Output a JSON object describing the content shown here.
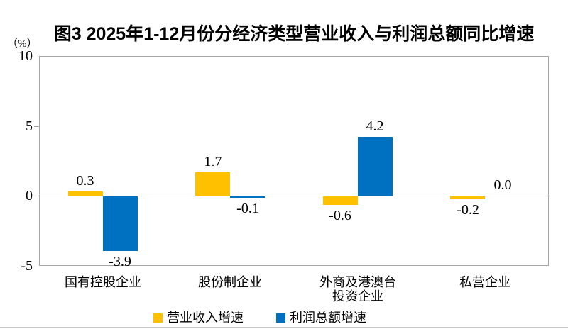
{
  "figure": {
    "bottom_rule": true
  },
  "chart_data": {
    "type": "bar",
    "title": "图3 2025年1-12月份分经济类型营业收入与利润总额同比增速",
    "ylabel": "（%）",
    "xlabel": "",
    "categories": [
      "国有控股企业",
      "股份制企业",
      "外商及港澳台\n投资企业",
      "私营企业"
    ],
    "series": [
      {
        "name": "营业收入增速",
        "color": "#FFC000",
        "values": [
          0.3,
          1.7,
          -0.6,
          -0.2
        ]
      },
      {
        "name": "利润总额增速",
        "color": "#0070C0",
        "values": [
          -3.9,
          -0.1,
          4.2,
          0.0
        ]
      }
    ],
    "data_labels": {
      "营业收入增速": [
        "0.3",
        "1.7",
        "-0.6",
        "-0.2"
      ],
      "利润总额增速": [
        "-3.9",
        "-0.1",
        "4.2",
        "0.0"
      ]
    },
    "ylim": [
      -5,
      10
    ],
    "y_ticks": [
      10,
      5,
      0,
      -5
    ],
    "grid": "zero-line-only",
    "axis_line_color": "#A6A6A6",
    "legend_position": "bottom"
  }
}
